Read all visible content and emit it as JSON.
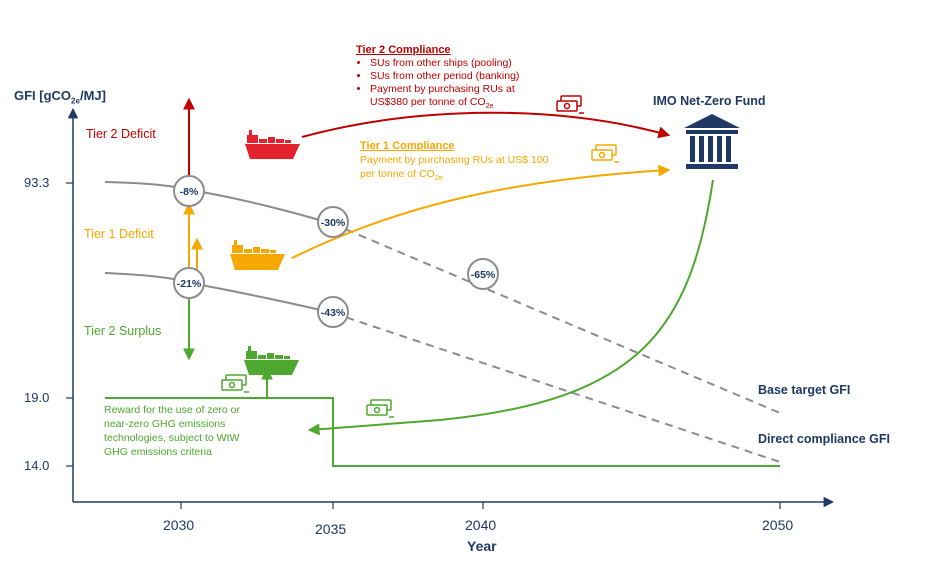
{
  "axis": {
    "y_label_prefix": "GFI [gCO",
    "y_label_sub": "2e",
    "y_label_suffix": "/MJ]",
    "x_label": "Year",
    "y_ticks": [
      "93.3",
      "19.0",
      "14.0"
    ],
    "x_ticks": [
      "2030",
      "2035",
      "2040",
      "2050"
    ]
  },
  "zones": {
    "tier2_deficit": "Tier 2 Deficit",
    "tier1_deficit": "Tier 1 Deficit",
    "tier2_surplus": "Tier 2 Surplus"
  },
  "tier2_compliance": {
    "title": "Tier 2 Compliance",
    "bullets": [
      "SUs from other ships (pooling)",
      "SUs from other period (banking)",
      "Payment by purchasing RUs at"
    ],
    "bullet3_line2_prefix": "US$380 per tonne of CO",
    "bullet3_line2_sub": "2e"
  },
  "tier1_compliance": {
    "title": "Tier 1 Compliance",
    "line1": "Payment by purchasing RUs at US$ 100",
    "line2_prefix": "per tonne of CO",
    "line2_sub": "2e"
  },
  "fund": {
    "label": "IMO Net-Zero Fund"
  },
  "reward": {
    "lines": [
      "Reward for the use of zero or",
      "near-zero GHG emissions",
      "technologies, subject to WtW",
      "GHG emissions criteria"
    ]
  },
  "series_labels": {
    "base": "Base target GFI",
    "direct": "Direct compliance GFI"
  },
  "reductions": [
    "-8%",
    "-21%",
    "-30%",
    "-43%",
    "-65%"
  ],
  "icons": [
    "ship-icon",
    "cash-icon",
    "bank-icon"
  ],
  "colors": {
    "navy": "#1f3864",
    "red": "#c00000",
    "orange": "#f5a800",
    "green": "#4ea72e",
    "gray": "#8c8c8c"
  }
}
